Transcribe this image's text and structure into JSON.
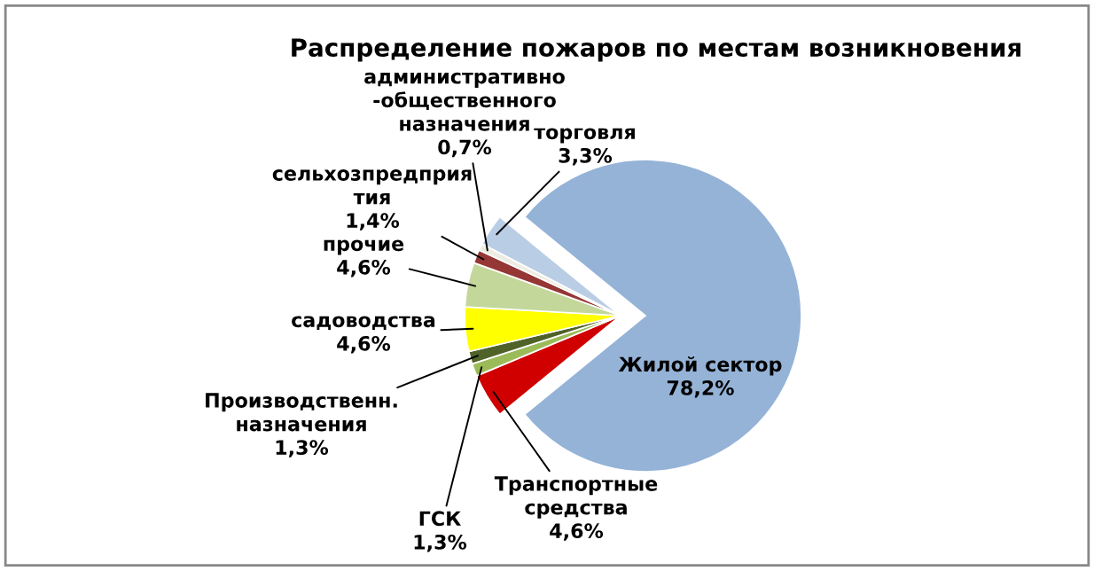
{
  "chart_data": {
    "type": "pie",
    "title": "Распределение пожаров по местам возникновения",
    "categories": [
      "Жилой сектор",
      "Транспортные\nсредства",
      "ГСК",
      "Производственн.\nназначения",
      "садоводства",
      "прочие",
      "сельхозпредприя\nтия",
      "административно\n-общественного\nназначения",
      "торговля"
    ],
    "values": [
      78.2,
      4.6,
      1.3,
      1.3,
      4.6,
      4.6,
      1.4,
      0.7,
      3.3
    ],
    "value_labels": [
      "78,2%",
      "4,6%",
      "1,3%",
      "1,3%",
      "4,6%",
      "4,6%",
      "1,4%",
      "0,7%",
      "3,3%"
    ],
    "colors": [
      "#95b3d7",
      "#d00000",
      "#9bbb59",
      "#4f6228",
      "#ffff00",
      "#c4d79b",
      "#953735",
      "#eeece1",
      "#b9cde5"
    ],
    "legend": false
  }
}
